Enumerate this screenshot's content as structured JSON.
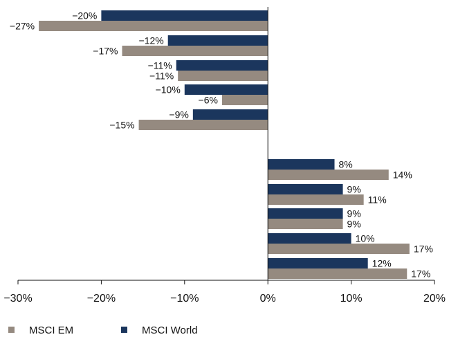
{
  "chart_data": {
    "type": "bar",
    "orientation": "horizontal",
    "xlim": [
      -30,
      20
    ],
    "x_ticks": [
      -30,
      -20,
      -10,
      0,
      10,
      20
    ],
    "x_tick_labels": [
      "−30%",
      "−20%",
      "−10%",
      "0%",
      "10%",
      "20%"
    ],
    "grid": false,
    "legend_position": "bottom-left",
    "series": [
      {
        "name": "MSCI World",
        "color": "#1b365d",
        "values": [
          -20,
          -12,
          -11,
          -10,
          -9,
          8,
          9,
          9,
          10,
          12
        ],
        "labels": [
          "−20%",
          "−12%",
          "−11%",
          "−10%",
          "−9%",
          "8%",
          "9%",
          "9%",
          "10%",
          "12%"
        ]
      },
      {
        "name": "MSCI EM",
        "color": "#958a80",
        "values": [
          -27.5,
          -17.5,
          -10.8,
          -5.5,
          -15.5,
          14.5,
          11.5,
          9,
          17,
          16.7
        ],
        "labels": [
          "−27%",
          "−17%",
          "−11%",
          "−6%",
          "−15%",
          "14%",
          "11%",
          "9%",
          "17%",
          "17%"
        ]
      }
    ],
    "legend": [
      {
        "name": "MSCI EM",
        "color": "#958a80"
      },
      {
        "name": "MSCI World",
        "color": "#1b365d"
      }
    ]
  }
}
